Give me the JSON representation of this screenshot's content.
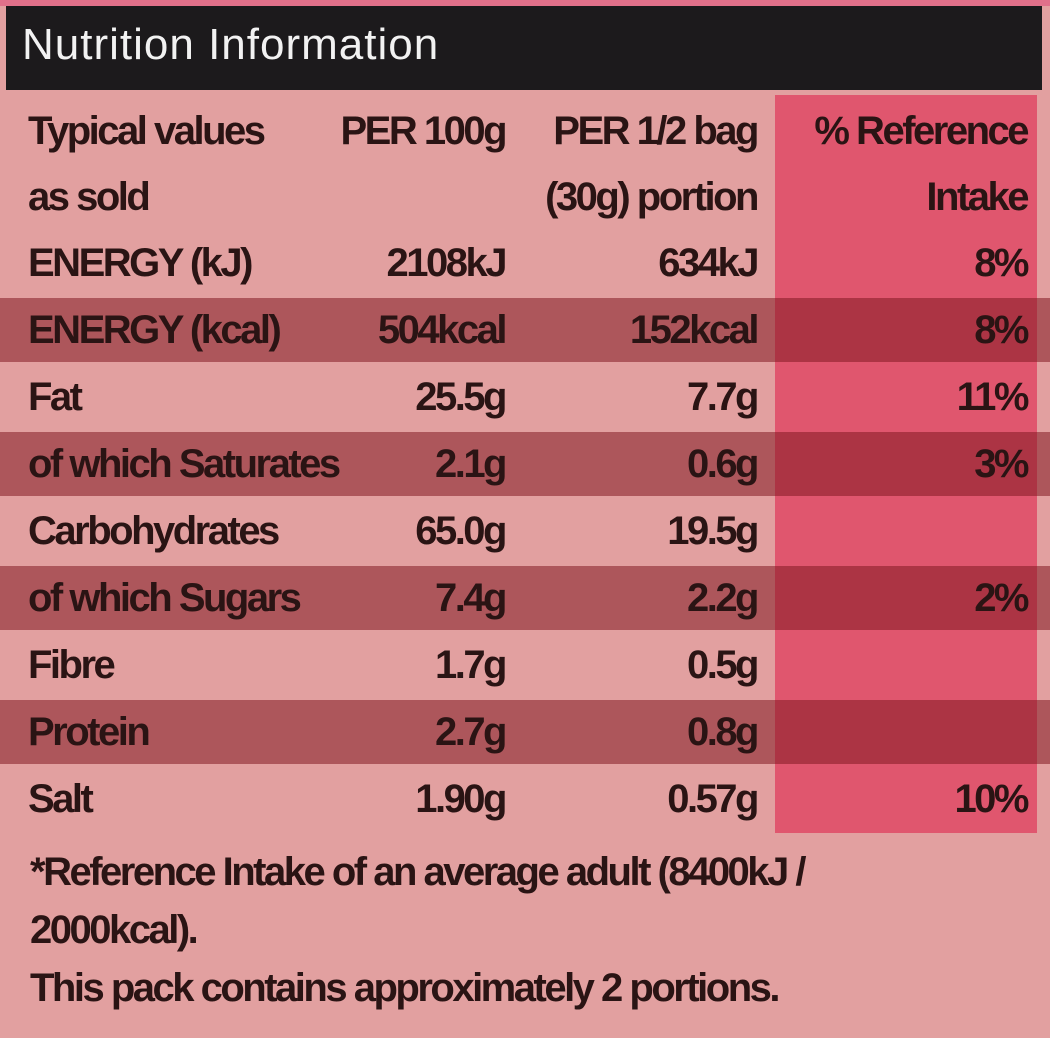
{
  "header": {
    "title": "Nutrition Information"
  },
  "table": {
    "columns": [
      [
        "Typical values",
        "as sold"
      ],
      [
        "PER 100g"
      ],
      [
        "PER 1/2 bag",
        "(30g) portion"
      ],
      [
        "% Reference",
        "Intake"
      ]
    ],
    "rows": [
      [
        "ENERGY (kJ)",
        "2108kJ",
        "634kJ",
        "8%"
      ],
      [
        "ENERGY (kcal)",
        "504kcal",
        "152kcal",
        "8%"
      ],
      [
        "Fat",
        "25.5g",
        "7.7g",
        "11%"
      ],
      [
        "of which Saturates",
        "2.1g",
        "0.6g",
        "3%"
      ],
      [
        "Carbohydrates",
        "65.0g",
        "19.5g"
      ],
      [
        "of which Sugars",
        "7.4g",
        "2.2g",
        "2%"
      ],
      [
        "Fibre",
        "1.7g",
        "0.5g"
      ],
      [
        "Protein",
        "2.7g",
        "0.8g"
      ],
      [
        "Salt",
        "1.90g",
        "0.57g",
        "10%"
      ]
    ]
  },
  "footnote": [
    "*Reference Intake of an average adult (8400kJ /",
    "2000kcal).",
    "This pack contains approximately 2 portions."
  ]
}
